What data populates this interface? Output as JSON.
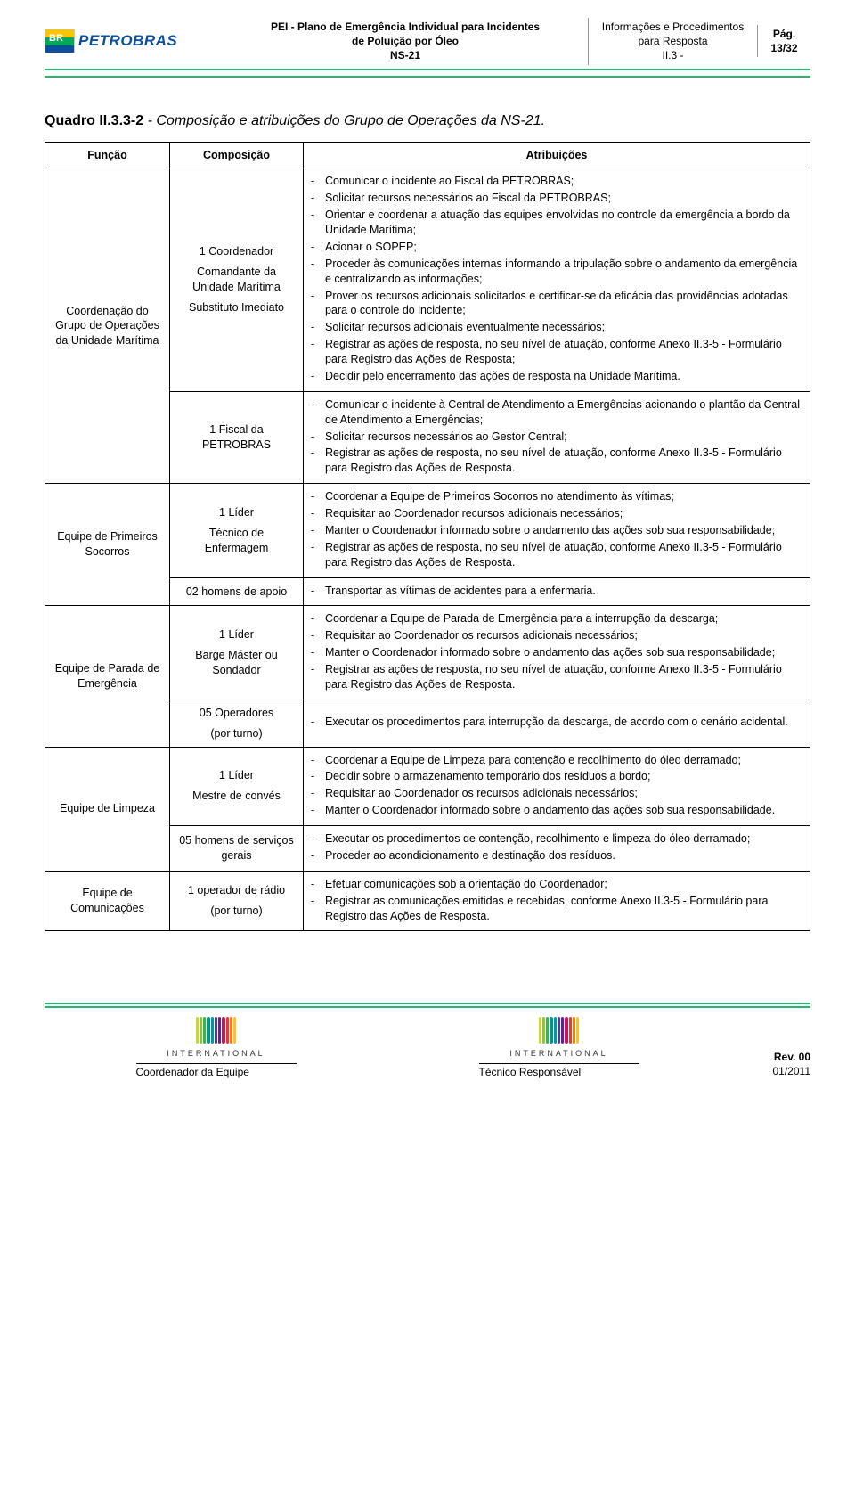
{
  "header": {
    "logo_text": "BR",
    "logo_word": "PETROBRAS",
    "title_line1": "PEI - Plano de Emergência Individual para Incidentes",
    "title_line2": "de Poluição por Óleo",
    "title_line3": "NS-21",
    "info_line1": "Informações e Procedimentos",
    "info_line2": "para Resposta",
    "info_line3": "II.3 -",
    "page_label": "Pág.",
    "page_value": "13/32"
  },
  "quadro": {
    "label": "Quadro II.3.3-2",
    "title": " - Composição e atribuições do Grupo de Operações da NS-21."
  },
  "table": {
    "headers": {
      "funcao": "Função",
      "composicao": "Composição",
      "atribuicoes": "Atribuições"
    },
    "rows": [
      {
        "funcao": "Coordenação do Grupo de Operações da Unidade Marítima",
        "funcao_rowspan": 2,
        "comp_lines": [
          "1 Coordenador",
          "Comandante da Unidade Marítima",
          "Substituto Imediato"
        ],
        "attrs": [
          "Comunicar o incidente ao Fiscal da PETROBRAS;",
          "Solicitar recursos necessários ao Fiscal da PETROBRAS;",
          "Orientar e coordenar a atuação das equipes envolvidas no controle da emergência a bordo da Unidade Marítima;",
          "Acionar o SOPEP;",
          "Proceder às comunicações internas informando a tripulação sobre o andamento da emergência e centralizando as informações;",
          "Prover os recursos adicionais solicitados e certificar-se da eficácia das providências adotadas para o controle do incidente;",
          "Solicitar recursos adicionais eventualmente necessários;",
          "Registrar as ações de resposta, no seu nível de atuação, conforme Anexo II.3-5 - Formulário para Registro das Ações de Resposta;",
          "Decidir pelo encerramento das ações de resposta na Unidade Marítima."
        ]
      },
      {
        "funcao": null,
        "comp_lines": [
          "1 Fiscal da PETROBRAS"
        ],
        "attrs": [
          "Comunicar o incidente à Central de Atendimento a Emergências acionando o plantão da Central de Atendimento a Emergências;",
          "Solicitar recursos necessários ao Gestor Central;",
          "Registrar as ações de resposta, no seu nível de atuação, conforme Anexo II.3-5 - Formulário para Registro das Ações de Resposta."
        ]
      },
      {
        "funcao": "Equipe de Primeiros Socorros",
        "funcao_rowspan": 2,
        "comp_lines": [
          "1 Líder",
          "Técnico de Enfermagem"
        ],
        "attrs": [
          "Coordenar a Equipe de Primeiros Socorros no atendimento às vítimas;",
          "Requisitar ao Coordenador recursos adicionais necessários;",
          "Manter o Coordenador informado sobre o andamento das ações sob sua responsabilidade;",
          "Registrar as ações de resposta, no seu nível de atuação, conforme Anexo II.3-5 - Formulário para Registro das Ações de Resposta."
        ]
      },
      {
        "funcao": null,
        "comp_lines": [
          "02 homens de apoio"
        ],
        "attrs": [
          "Transportar as vítimas de acidentes para a enfermaria."
        ]
      },
      {
        "funcao": "Equipe de Parada de Emergência",
        "funcao_rowspan": 2,
        "comp_lines": [
          "1 Líder",
          "Barge Máster ou Sondador"
        ],
        "attrs": [
          "Coordenar a Equipe de Parada de Emergência para a interrupção da descarga;",
          "Requisitar ao Coordenador os recursos adicionais necessários;",
          "Manter o Coordenador informado sobre o andamento das ações sob sua responsabilidade;",
          "Registrar as ações de resposta, no seu nível de atuação, conforme Anexo II.3-5 - Formulário para Registro das Ações de Resposta."
        ]
      },
      {
        "funcao": null,
        "comp_lines": [
          "05 Operadores",
          "(por turno)"
        ],
        "attrs": [
          "Executar os procedimentos para interrupção da descarga, de acordo com o cenário acidental."
        ]
      },
      {
        "funcao": "Equipe de Limpeza",
        "funcao_rowspan": 2,
        "comp_lines": [
          "1 Líder",
          "Mestre de convés"
        ],
        "attrs": [
          "Coordenar a Equipe de Limpeza para contenção e recolhimento do óleo derramado;",
          "Decidir sobre o armazenamento temporário dos resíduos a bordo;",
          "Requisitar ao Coordenador os recursos adicionais necessários;",
          "Manter o Coordenador informado sobre o andamento das ações sob sua responsabilidade."
        ]
      },
      {
        "funcao": null,
        "comp_lines": [
          "05 homens de serviços gerais"
        ],
        "attrs": [
          "Executar os procedimentos de contenção, recolhimento e limpeza do óleo derramado;",
          "Proceder ao acondicionamento e destinação dos resíduos."
        ]
      },
      {
        "funcao": "Equipe de Comunicações",
        "funcao_rowspan": 1,
        "comp_lines": [
          "1 operador de rádio",
          "(por turno)"
        ],
        "attrs": [
          "Efetuar comunicações sob a orientação do Coordenador;",
          "Registrar as comunicações emitidas e recebidas, conforme Anexo II.3-5 - Formulário para Registro das Ações de Resposta."
        ]
      }
    ]
  },
  "footer": {
    "left_label": "Coordenador da Equipe",
    "right_label": "Técnico Responsável",
    "icf_word": "INTERNATIONAL",
    "rev_label": "Rev. 00",
    "date": "01/2011",
    "icf_colors": [
      "#c7d92c",
      "#8cc63f",
      "#39b54a",
      "#009688",
      "#0097a7",
      "#4a3f8f",
      "#6a1b9a",
      "#c2185b",
      "#e53935",
      "#f57c00",
      "#fbc02d"
    ]
  },
  "colors": {
    "accent_green": "#29b473",
    "text": "#000000"
  }
}
